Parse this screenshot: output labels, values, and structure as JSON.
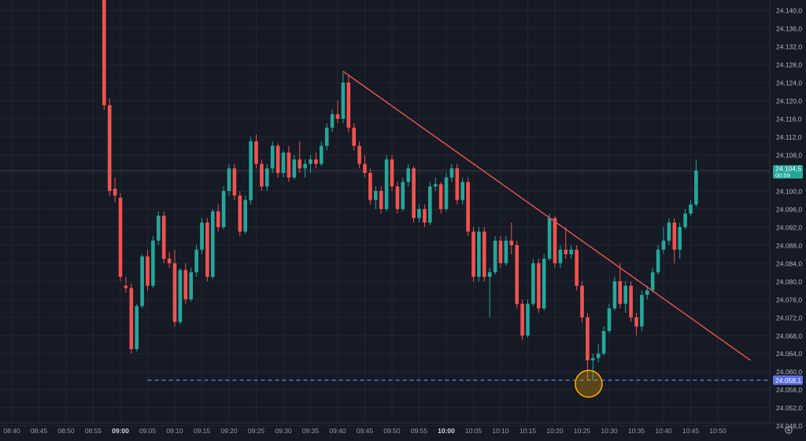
{
  "chart_data": {
    "type": "candlestick",
    "y_axis": {
      "ticks": [
        "24.140,0",
        "24.136,0",
        "24.132,0",
        "24.128,0",
        "24.124,0",
        "24.120,0",
        "24.116,0",
        "24.112,0",
        "24.108,0",
        "24.104,0",
        "24.100,0",
        "24.096,0",
        "24.092,0",
        "24.088,0",
        "24.084,0",
        "24.080,0",
        "24.076,0",
        "24.072,0",
        "24.068,0",
        "24.064,0",
        "24.060,0",
        "24.056,0",
        "24.052,0",
        "24.048,0"
      ],
      "range": [
        24.0455,
        24.1423
      ]
    },
    "x_axis": {
      "ticks": [
        "08:40",
        "08:45",
        "08:50",
        "08:55",
        "09:00",
        "09:05",
        "09:10",
        "09:15",
        "09:20",
        "09:25",
        "09:30",
        "09:35",
        "09:40",
        "09:45",
        "09:50",
        "09:55",
        "10:00",
        "10:05",
        "10:10",
        "10:15",
        "10:20",
        "10:25",
        "10:30",
        "10:35",
        "10:40",
        "10:45",
        "10:50"
      ],
      "bold_ticks": [
        "09:00",
        "10:00"
      ]
    },
    "price_labels": {
      "current": {
        "value": "24.104,5",
        "countdown": "00:59",
        "price": 24.1045,
        "color": "#26a69a"
      },
      "level": {
        "value": "24.058,1",
        "price": 24.0581,
        "color": "#5b6fe0"
      }
    },
    "drawings": {
      "trendline": {
        "from": [
          "09:41",
          24.1265
        ],
        "to": [
          "10:56",
          24.0625
        ],
        "color": "#ef5350"
      },
      "horizontal_dashed_line": {
        "price": 24.0581,
        "from": "09:05",
        "color": "#6b7cf0"
      },
      "highlight_circle": {
        "time": "10:26",
        "price": 24.0573,
        "color": "#f2a900"
      }
    },
    "colors": {
      "up": "#26a69a",
      "down": "#ef5350",
      "background": "#161a25",
      "grid": "#22262f"
    },
    "candles": [
      {
        "t": "08:57",
        "o": 24.1442,
        "h": 24.146,
        "l": 24.118,
        "c": 24.119
      },
      {
        "t": "08:58",
        "o": 24.119,
        "h": 24.1205,
        "l": 24.099,
        "c": 24.1
      },
      {
        "t": "08:59",
        "o": 24.1005,
        "h": 24.103,
        "l": 24.0975,
        "c": 24.099
      },
      {
        "t": "09:00",
        "o": 24.0985,
        "h": 24.0995,
        "l": 24.08,
        "c": 24.081
      },
      {
        "t": "09:01",
        "o": 24.079,
        "h": 24.081,
        "l": 24.0775,
        "c": 24.0785
      },
      {
        "t": "09:02",
        "o": 24.0785,
        "h": 24.0795,
        "l": 24.064,
        "c": 24.065
      },
      {
        "t": "09:03",
        "o": 24.065,
        "h": 24.075,
        "l": 24.0645,
        "c": 24.0745
      },
      {
        "t": "09:04",
        "o": 24.0745,
        "h": 24.086,
        "l": 24.074,
        "c": 24.0855
      },
      {
        "t": "09:05",
        "o": 24.0855,
        "h": 24.087,
        "l": 24.078,
        "c": 24.079
      },
      {
        "t": "09:06",
        "o": 24.079,
        "h": 24.09,
        "l": 24.0785,
        "c": 24.089
      },
      {
        "t": "09:07",
        "o": 24.089,
        "h": 24.0955,
        "l": 24.088,
        "c": 24.0945
      },
      {
        "t": "09:08",
        "o": 24.0945,
        "h": 24.0955,
        "l": 24.084,
        "c": 24.085
      },
      {
        "t": "09:09",
        "o": 24.085,
        "h": 24.0865,
        "l": 24.083,
        "c": 24.084
      },
      {
        "t": "09:10",
        "o": 24.084,
        "h": 24.087,
        "l": 24.07,
        "c": 24.071
      },
      {
        "t": "09:11",
        "o": 24.071,
        "h": 24.083,
        "l": 24.0705,
        "c": 24.0825
      },
      {
        "t": "09:12",
        "o": 24.0825,
        "h": 24.084,
        "l": 24.075,
        "c": 24.076
      },
      {
        "t": "09:13",
        "o": 24.076,
        "h": 24.083,
        "l": 24.0755,
        "c": 24.082
      },
      {
        "t": "09:14",
        "o": 24.082,
        "h": 24.088,
        "l": 24.081,
        "c": 24.087
      },
      {
        "t": "09:15",
        "o": 24.087,
        "h": 24.094,
        "l": 24.086,
        "c": 24.093
      },
      {
        "t": "09:16",
        "o": 24.093,
        "h": 24.094,
        "l": 24.08,
        "c": 24.081
      },
      {
        "t": "09:17",
        "o": 24.081,
        "h": 24.096,
        "l": 24.0805,
        "c": 24.0955
      },
      {
        "t": "09:18",
        "o": 24.0955,
        "h": 24.097,
        "l": 24.091,
        "c": 24.092
      },
      {
        "t": "09:19",
        "o": 24.092,
        "h": 24.101,
        "l": 24.0915,
        "c": 24.1
      },
      {
        "t": "09:20",
        "o": 24.1,
        "h": 24.106,
        "l": 24.099,
        "c": 24.105
      },
      {
        "t": "09:21",
        "o": 24.105,
        "h": 24.106,
        "l": 24.098,
        "c": 24.099
      },
      {
        "t": "09:22",
        "o": 24.099,
        "h": 24.1,
        "l": 24.09,
        "c": 24.091
      },
      {
        "t": "09:23",
        "o": 24.091,
        "h": 24.099,
        "l": 24.0905,
        "c": 24.098
      },
      {
        "t": "09:24",
        "o": 24.098,
        "h": 24.112,
        "l": 24.097,
        "c": 24.111
      },
      {
        "t": "09:25",
        "o": 24.111,
        "h": 24.1125,
        "l": 24.105,
        "c": 24.106
      },
      {
        "t": "09:26",
        "o": 24.106,
        "h": 24.107,
        "l": 24.1,
        "c": 24.101
      },
      {
        "t": "09:27",
        "o": 24.101,
        "h": 24.106,
        "l": 24.1,
        "c": 24.105
      },
      {
        "t": "09:28",
        "o": 24.105,
        "h": 24.111,
        "l": 24.104,
        "c": 24.11
      },
      {
        "t": "09:29",
        "o": 24.11,
        "h": 24.1105,
        "l": 24.103,
        "c": 24.104
      },
      {
        "t": "09:30",
        "o": 24.104,
        "h": 24.109,
        "l": 24.103,
        "c": 24.1085
      },
      {
        "t": "09:31",
        "o": 24.1085,
        "h": 24.11,
        "l": 24.102,
        "c": 24.103
      },
      {
        "t": "09:32",
        "o": 24.103,
        "h": 24.108,
        "l": 24.1025,
        "c": 24.107
      },
      {
        "t": "09:33",
        "o": 24.107,
        "h": 24.111,
        "l": 24.104,
        "c": 24.105
      },
      {
        "t": "09:34",
        "o": 24.105,
        "h": 24.107,
        "l": 24.103,
        "c": 24.106
      },
      {
        "t": "09:35",
        "o": 24.106,
        "h": 24.108,
        "l": 24.104,
        "c": 24.107
      },
      {
        "t": "09:36",
        "o": 24.107,
        "h": 24.1085,
        "l": 24.105,
        "c": 24.106
      },
      {
        "t": "09:37",
        "o": 24.106,
        "h": 24.111,
        "l": 24.1055,
        "c": 24.11
      },
      {
        "t": "09:38",
        "o": 24.11,
        "h": 24.115,
        "l": 24.109,
        "c": 24.114
      },
      {
        "t": "09:39",
        "o": 24.114,
        "h": 24.118,
        "l": 24.113,
        "c": 24.117
      },
      {
        "t": "09:40",
        "o": 24.117,
        "h": 24.12,
        "l": 24.115,
        "c": 24.116
      },
      {
        "t": "09:41",
        "o": 24.116,
        "h": 24.1265,
        "l": 24.115,
        "c": 24.124
      },
      {
        "t": "09:42",
        "o": 24.124,
        "h": 24.1255,
        "l": 24.113,
        "c": 24.114
      },
      {
        "t": "09:43",
        "o": 24.114,
        "h": 24.115,
        "l": 24.109,
        "c": 24.11
      },
      {
        "t": "09:44",
        "o": 24.11,
        "h": 24.111,
        "l": 24.105,
        "c": 24.106
      },
      {
        "t": "09:45",
        "o": 24.106,
        "h": 24.108,
        "l": 24.103,
        "c": 24.104
      },
      {
        "t": "09:46",
        "o": 24.104,
        "h": 24.105,
        "l": 24.097,
        "c": 24.098
      },
      {
        "t": "09:47",
        "o": 24.098,
        "h": 24.101,
        "l": 24.096,
        "c": 24.1
      },
      {
        "t": "09:48",
        "o": 24.1,
        "h": 24.101,
        "l": 24.095,
        "c": 24.096
      },
      {
        "t": "09:49",
        "o": 24.096,
        "h": 24.108,
        "l": 24.0955,
        "c": 24.107
      },
      {
        "t": "09:50",
        "o": 24.107,
        "h": 24.108,
        "l": 24.1,
        "c": 24.101
      },
      {
        "t": "09:51",
        "o": 24.101,
        "h": 24.102,
        "l": 24.095,
        "c": 24.096
      },
      {
        "t": "09:52",
        "o": 24.096,
        "h": 24.103,
        "l": 24.0955,
        "c": 24.102
      },
      {
        "t": "09:53",
        "o": 24.102,
        "h": 24.106,
        "l": 24.101,
        "c": 24.105
      },
      {
        "t": "09:54",
        "o": 24.105,
        "h": 24.1055,
        "l": 24.093,
        "c": 24.094
      },
      {
        "t": "09:55",
        "o": 24.094,
        "h": 24.097,
        "l": 24.093,
        "c": 24.096
      },
      {
        "t": "09:56",
        "o": 24.096,
        "h": 24.097,
        "l": 24.092,
        "c": 24.093
      },
      {
        "t": "09:57",
        "o": 24.093,
        "h": 24.102,
        "l": 24.0925,
        "c": 24.101
      },
      {
        "t": "09:58",
        "o": 24.101,
        "h": 24.103,
        "l": 24.1,
        "c": 24.1015
      },
      {
        "t": "09:59",
        "o": 24.1015,
        "h": 24.102,
        "l": 24.095,
        "c": 24.096
      },
      {
        "t": "10:00",
        "o": 24.096,
        "h": 24.104,
        "l": 24.0955,
        "c": 24.103
      },
      {
        "t": "10:01",
        "o": 24.103,
        "h": 24.106,
        "l": 24.102,
        "c": 24.105
      },
      {
        "t": "10:02",
        "o": 24.105,
        "h": 24.106,
        "l": 24.097,
        "c": 24.098
      },
      {
        "t": "10:03",
        "o": 24.098,
        "h": 24.103,
        "l": 24.097,
        "c": 24.102
      },
      {
        "t": "10:04",
        "o": 24.102,
        "h": 24.103,
        "l": 24.09,
        "c": 24.091
      },
      {
        "t": "10:05",
        "o": 24.091,
        "h": 24.092,
        "l": 24.08,
        "c": 24.081
      },
      {
        "t": "10:06",
        "o": 24.081,
        "h": 24.092,
        "l": 24.08,
        "c": 24.091
      },
      {
        "t": "10:07",
        "o": 24.091,
        "h": 24.092,
        "l": 24.08,
        "c": 24.081
      },
      {
        "t": "10:08",
        "o": 24.081,
        "h": 24.083,
        "l": 24.072,
        "c": 24.082
      },
      {
        "t": "10:09",
        "o": 24.082,
        "h": 24.09,
        "l": 24.0815,
        "c": 24.089
      },
      {
        "t": "10:10",
        "o": 24.089,
        "h": 24.09,
        "l": 24.083,
        "c": 24.084
      },
      {
        "t": "10:11",
        "o": 24.084,
        "h": 24.09,
        "l": 24.0835,
        "c": 24.089
      },
      {
        "t": "10:12",
        "o": 24.089,
        "h": 24.093,
        "l": 24.086,
        "c": 24.088
      },
      {
        "t": "10:13",
        "o": 24.088,
        "h": 24.089,
        "l": 24.074,
        "c": 24.075
      },
      {
        "t": "10:14",
        "o": 24.075,
        "h": 24.076,
        "l": 24.067,
        "c": 24.068
      },
      {
        "t": "10:15",
        "o": 24.068,
        "h": 24.076,
        "l": 24.0675,
        "c": 24.075
      },
      {
        "t": "10:16",
        "o": 24.075,
        "h": 24.085,
        "l": 24.0745,
        "c": 24.084
      },
      {
        "t": "10:17",
        "o": 24.084,
        "h": 24.085,
        "l": 24.073,
        "c": 24.074
      },
      {
        "t": "10:18",
        "o": 24.074,
        "h": 24.086,
        "l": 24.0735,
        "c": 24.085
      },
      {
        "t": "10:19",
        "o": 24.085,
        "h": 24.095,
        "l": 24.0845,
        "c": 24.094
      },
      {
        "t": "10:20",
        "o": 24.094,
        "h": 24.0945,
        "l": 24.083,
        "c": 24.084
      },
      {
        "t": "10:21",
        "o": 24.084,
        "h": 24.088,
        "l": 24.083,
        "c": 24.087
      },
      {
        "t": "10:22",
        "o": 24.087,
        "h": 24.092,
        "l": 24.085,
        "c": 24.086
      },
      {
        "t": "10:23",
        "o": 24.086,
        "h": 24.088,
        "l": 24.085,
        "c": 24.087
      },
      {
        "t": "10:24",
        "o": 24.087,
        "h": 24.088,
        "l": 24.078,
        "c": 24.079
      },
      {
        "t": "10:25",
        "o": 24.079,
        "h": 24.08,
        "l": 24.071,
        "c": 24.072
      },
      {
        "t": "10:26",
        "o": 24.072,
        "h": 24.073,
        "l": 24.058,
        "c": 24.0625
      },
      {
        "t": "10:27",
        "o": 24.0625,
        "h": 24.064,
        "l": 24.0581,
        "c": 24.063
      },
      {
        "t": "10:28",
        "o": 24.063,
        "h": 24.066,
        "l": 24.062,
        "c": 24.064
      },
      {
        "t": "10:29",
        "o": 24.064,
        "h": 24.07,
        "l": 24.0635,
        "c": 24.069
      },
      {
        "t": "10:30",
        "o": 24.069,
        "h": 24.075,
        "l": 24.0685,
        "c": 24.074
      },
      {
        "t": "10:31",
        "o": 24.074,
        "h": 24.081,
        "l": 24.0735,
        "c": 24.08
      },
      {
        "t": "10:32",
        "o": 24.08,
        "h": 24.084,
        "l": 24.074,
        "c": 24.075
      },
      {
        "t": "10:33",
        "o": 24.075,
        "h": 24.08,
        "l": 24.073,
        "c": 24.079
      },
      {
        "t": "10:34",
        "o": 24.079,
        "h": 24.08,
        "l": 24.071,
        "c": 24.072
      },
      {
        "t": "10:35",
        "o": 24.072,
        "h": 24.073,
        "l": 24.068,
        "c": 24.07
      },
      {
        "t": "10:36",
        "o": 24.07,
        "h": 24.078,
        "l": 24.069,
        "c": 24.077
      },
      {
        "t": "10:37",
        "o": 24.077,
        "h": 24.079,
        "l": 24.076,
        "c": 24.078
      },
      {
        "t": "10:38",
        "o": 24.078,
        "h": 24.083,
        "l": 24.0775,
        "c": 24.082
      },
      {
        "t": "10:39",
        "o": 24.082,
        "h": 24.088,
        "l": 24.0815,
        "c": 24.087
      },
      {
        "t": "10:40",
        "o": 24.087,
        "h": 24.092,
        "l": 24.086,
        "c": 24.089
      },
      {
        "t": "10:41",
        "o": 24.089,
        "h": 24.094,
        "l": 24.088,
        "c": 24.093
      },
      {
        "t": "10:42",
        "o": 24.093,
        "h": 24.094,
        "l": 24.084,
        "c": 24.087
      },
      {
        "t": "10:43",
        "o": 24.087,
        "h": 24.093,
        "l": 24.085,
        "c": 24.092
      },
      {
        "t": "10:44",
        "o": 24.092,
        "h": 24.096,
        "l": 24.0915,
        "c": 24.095
      },
      {
        "t": "10:45",
        "o": 24.095,
        "h": 24.098,
        "l": 24.0945,
        "c": 24.097
      },
      {
        "t": "10:46",
        "o": 24.097,
        "h": 24.107,
        "l": 24.0965,
        "c": 24.1045
      }
    ]
  },
  "footer": {
    "settings_icon": "gear-icon"
  }
}
